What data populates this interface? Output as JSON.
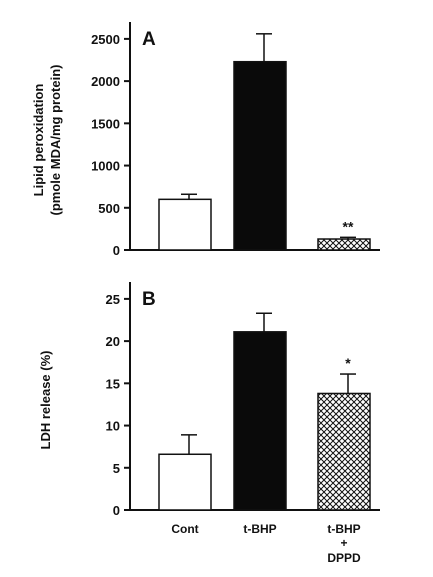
{
  "chart_data": [
    {
      "type": "bar",
      "panel": "A",
      "categories": [
        "Cont",
        "t-BHP",
        "t-BHP\n+\nDPPD"
      ],
      "values": [
        600,
        2230,
        130
      ],
      "errors": [
        60,
        330,
        20
      ],
      "annotations": [
        "",
        "",
        "**"
      ],
      "fills": [
        "white",
        "black",
        "crosshatch"
      ],
      "ylabel_line1": "Lipid peroxidation",
      "ylabel_line2": "(pmole MDA/mg protein)",
      "ylim": [
        0,
        2700
      ],
      "yticks": [
        0,
        500,
        1000,
        1500,
        2000,
        2500
      ],
      "xlabel": ""
    },
    {
      "type": "bar",
      "panel": "B",
      "categories": [
        "Cont",
        "t-BHP",
        "t-BHP\n+\nDPPD"
      ],
      "values": [
        6.6,
        21.1,
        13.8
      ],
      "errors": [
        2.3,
        2.2,
        2.3
      ],
      "annotations": [
        "",
        "",
        "*"
      ],
      "fills": [
        "white",
        "black",
        "crosshatch"
      ],
      "ylabel": "LDH release (%)",
      "ylim": [
        0,
        27
      ],
      "yticks": [
        0,
        5,
        10,
        15,
        20,
        25
      ],
      "xlabel": ""
    }
  ],
  "x_category_labels": {
    "cont": "Cont",
    "tbhp": "t-BHP",
    "tbhp_dppd_line1": "t-BHP",
    "tbhp_dppd_line2": "+",
    "tbhp_dppd_line3": "DPPD"
  },
  "colors": {
    "ink": "#111111",
    "background": "#ffffff",
    "bar_black": "#0a0a0a",
    "bar_white": "#ffffff"
  }
}
